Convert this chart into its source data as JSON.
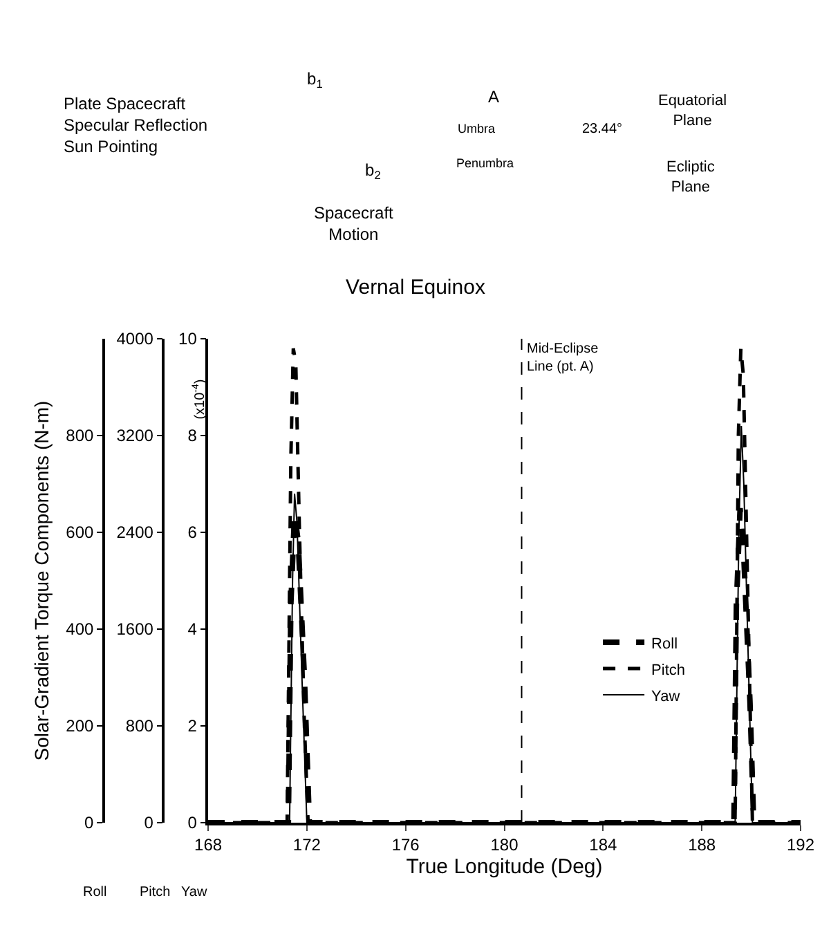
{
  "chart_data": {
    "type": "line",
    "title": "Vernal Equinox",
    "xlabel": "True Longitude (Deg)",
    "ylabel": "Solar-Gradient Torque Components (N-m)",
    "y3label": "(x10$^{-4}$)",
    "xlim": [
      168,
      192
    ],
    "xticks": [
      168,
      172,
      176,
      180,
      184,
      188,
      192
    ],
    "ylim": [
      0,
      1000
    ],
    "yticks": [
      0,
      200,
      400,
      600,
      800
    ],
    "y2lim": [
      0,
      4000
    ],
    "y2ticks": [
      0,
      800,
      1600,
      2400,
      3200,
      4000
    ],
    "y3lim": [
      0,
      10
    ],
    "y3ticks": [
      0,
      2,
      4,
      6,
      8,
      10
    ],
    "series": [
      {
        "name": "Roll",
        "color": "#000000",
        "line_style": "dashed",
        "x": [
          168,
          171.25,
          171.35,
          171.5,
          171.65,
          171.9,
          172.1,
          189.3,
          189.4,
          189.55,
          189.7,
          189.95,
          190.1,
          192
        ],
        "values": [
          0,
          0,
          450,
          640,
          580,
          300,
          0,
          0,
          450,
          650,
          550,
          250,
          0,
          0
        ]
      },
      {
        "name": "Pitch",
        "color": "#000000",
        "line_style": "dashed",
        "axis": "y2",
        "x": [
          168,
          171.2,
          171.35,
          171.45,
          171.55,
          171.7,
          171.9,
          172.05,
          189.35,
          189.48,
          189.58,
          189.68,
          189.85,
          190.05,
          192
        ],
        "values": [
          0,
          0,
          3000,
          3920,
          3800,
          2400,
          800,
          0,
          0,
          3200,
          3920,
          3700,
          2000,
          0,
          0
        ]
      },
      {
        "name": "Yaw",
        "color": "#000000",
        "line_style": "solid",
        "axis": "y3",
        "x": [
          168,
          171.3,
          171.42,
          171.5,
          171.6,
          171.8,
          172.0,
          189.35,
          189.5,
          189.6,
          189.7,
          189.9,
          190.05,
          192
        ],
        "values": [
          0,
          0,
          5,
          6.8,
          6.2,
          3,
          0,
          0,
          6,
          8.2,
          7,
          3,
          0,
          0
        ]
      }
    ],
    "ref_lines": [
      {
        "axis": "x",
        "value": 180.7,
        "label": "Mid-Eclipse\nLine (pt. A)",
        "line_style": "dashed",
        "color": "#000000"
      }
    ],
    "annotations": [
      "Plate Spacecraft\nSpecular Reflection\nSun Pointing",
      "b$_{1}$",
      "b$_{2}$",
      "A",
      "Umbra",
      "Penumbra",
      "23.44°",
      "Equatorial\nPlane",
      "Ecliptic\nPlane",
      "Spacecraft\nMotion",
      "Roll",
      "Pitch",
      "Yaw"
    ],
    "legend": "right",
    "marker": "none"
  }
}
